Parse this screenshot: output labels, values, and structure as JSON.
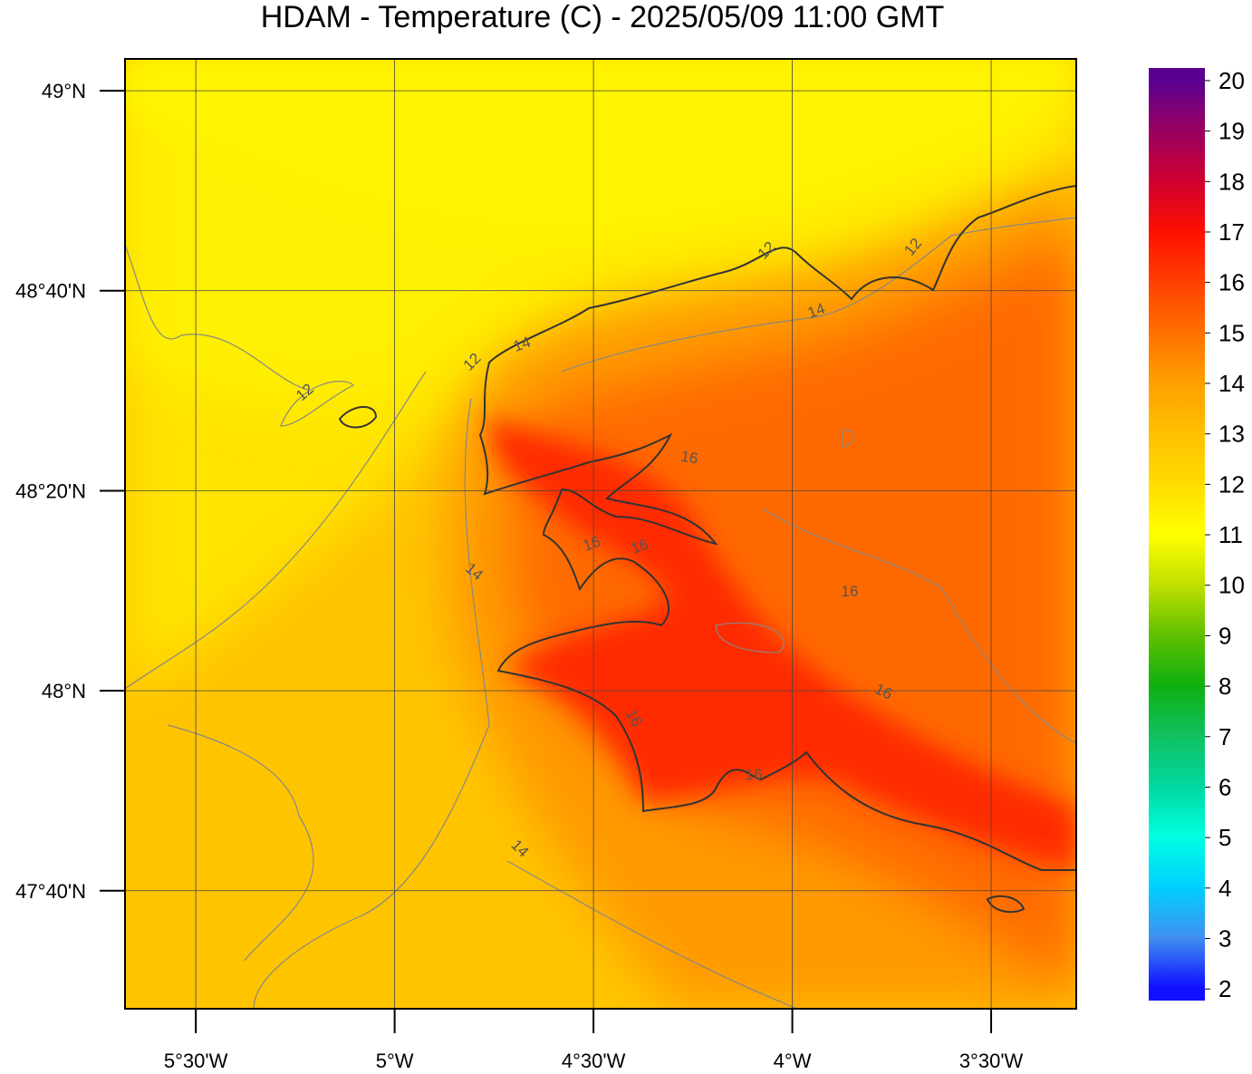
{
  "title": "HDAM - Temperature (C)  -  2025/05/09  11:00 GMT",
  "map": {
    "lon_range": [
      -5.678,
      -3.286
    ],
    "lat_range": [
      47.47,
      49.053
    ],
    "lat_ticks": [
      {
        "value": 49,
        "label": "49°N"
      },
      {
        "value": 48.6667,
        "label": "48°40'N"
      },
      {
        "value": 48.3333,
        "label": "48°20'N"
      },
      {
        "value": 48,
        "label": "48°N"
      },
      {
        "value": 47.6667,
        "label": "47°40'N"
      }
    ],
    "lon_ticks": [
      {
        "value": -5.5,
        "label": "5°30'W"
      },
      {
        "value": -5,
        "label": "5°W"
      },
      {
        "value": -4.5,
        "label": "4°30'W"
      },
      {
        "value": -4,
        "label": "4°W"
      },
      {
        "value": -3.5,
        "label": "3°30'W"
      }
    ],
    "contour_labels": [
      12,
      12,
      12,
      12,
      14,
      14,
      14,
      14,
      16,
      16,
      16,
      16,
      16,
      16,
      16
    ],
    "colorbar": {
      "range": [
        1.77,
        20.25
      ],
      "ticks": [
        2,
        3,
        4,
        5,
        6,
        7,
        8,
        9,
        10,
        11,
        12,
        13,
        14,
        15,
        16,
        17,
        18,
        19,
        20
      ]
    }
  }
}
